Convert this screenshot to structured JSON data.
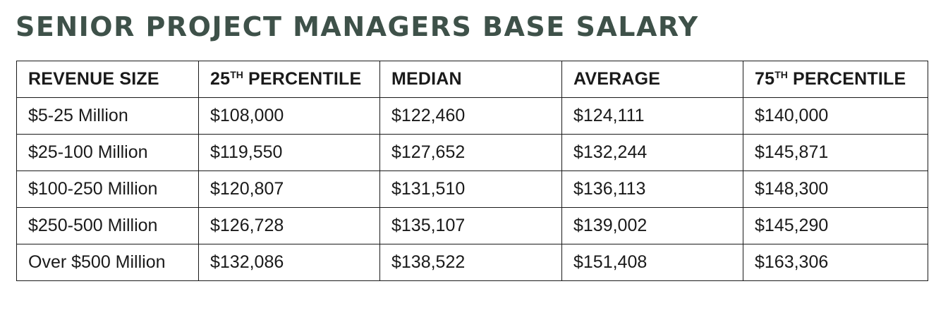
{
  "chart_data": {
    "type": "table",
    "title": "SENIOR PROJECT MANAGERS BASE SALARY",
    "columns": [
      {
        "text": "REVENUE SIZE",
        "sup": "",
        "rest": ""
      },
      {
        "text": "25",
        "sup": "TH",
        "rest": " PERCENTILE"
      },
      {
        "text": "MEDIAN",
        "sup": "",
        "rest": ""
      },
      {
        "text": "AVERAGE",
        "sup": "",
        "rest": ""
      },
      {
        "text": "75",
        "sup": "TH",
        "rest": " PERCENTILE"
      }
    ],
    "rows": [
      [
        "$5-25 Million",
        "$108,000",
        "$122,460",
        "$124,111",
        "$140,000"
      ],
      [
        "$25-100 Million",
        "$119,550",
        "$127,652",
        "$132,244",
        "$145,871"
      ],
      [
        "$100-250 Million",
        "$120,807",
        "$131,510",
        "$136,113",
        "$148,300"
      ],
      [
        "$250-500 Million",
        "$126,728",
        "$135,107",
        "$139,002",
        "$145,290"
      ],
      [
        "Over $500 Million",
        "$132,086",
        "$138,522",
        "$151,408",
        "$163,306"
      ]
    ]
  },
  "colors": {
    "title": "#3e5149",
    "text": "#1a1a1a",
    "border": "#1a1a1a",
    "background": "#ffffff"
  }
}
